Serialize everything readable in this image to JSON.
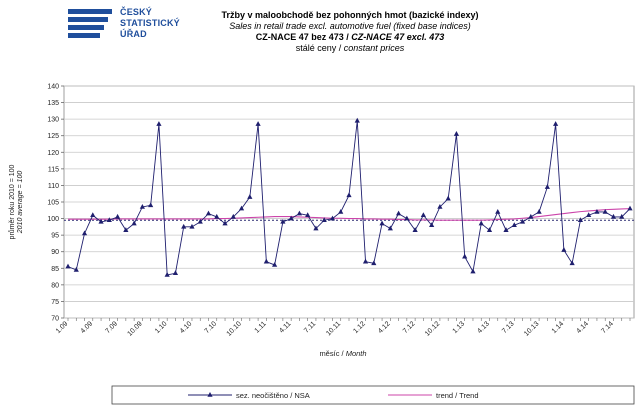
{
  "logo": {
    "line1": "ČESKÝ",
    "line2": "STATISTICKÝ",
    "line3": "ÚŘAD"
  },
  "header": {
    "title_cz": "Tržby v maloobchodě  bez pohonných  hmot (bazické indexy)",
    "title_en": "Sales in retail trade excl. automotive fuel (fixed base indices)",
    "code_cz": "CZ-NACE 47 bez 473",
    "code_en": "CZ-NACE 47 excl. 473",
    "prices_cz": "stálé ceny",
    "prices_en": "constant  prices"
  },
  "chart_data": {
    "type": "line",
    "ylabel_cz": "průměr roku 2010 = 100",
    "ylabel_en": "2010 average = 100",
    "xlabel_cz": "měsíc",
    "xlabel_en": "Month",
    "ylim": [
      70,
      140
    ],
    "yticks": [
      70,
      75,
      80,
      85,
      90,
      95,
      100,
      105,
      110,
      115,
      120,
      125,
      130,
      135,
      140
    ],
    "grid": true,
    "x": [
      "1.09",
      "2.09",
      "3.09",
      "4.09",
      "5.09",
      "6.09",
      "7.09",
      "8.09",
      "9.09",
      "10.09",
      "11.09",
      "12.09",
      "1.10",
      "2.10",
      "3.10",
      "4.10",
      "5.10",
      "6.10",
      "7.10",
      "8.10",
      "9.10",
      "10.10",
      "11.10",
      "12.10",
      "1.11",
      "2.11",
      "3.11",
      "4.11",
      "5.11",
      "6.11",
      "7.11",
      "8.11",
      "9.11",
      "10.11",
      "11.11",
      "12.11",
      "1.12",
      "2.12",
      "3.12",
      "4.12",
      "5.12",
      "6.12",
      "7.12",
      "8.12",
      "9.12",
      "10.12",
      "11.12",
      "12.12",
      "1.13",
      "2.13",
      "3.13",
      "4.13",
      "5.13",
      "6.13",
      "7.13",
      "8.13",
      "9.13",
      "10.13",
      "11.13",
      "12.13",
      "1.14",
      "2.14",
      "3.14",
      "4.14",
      "5.14",
      "6.14",
      "7.14",
      "8.14",
      "9.14"
    ],
    "xtick_labels": [
      "1.09",
      "4.09",
      "7.09",
      "10.09",
      "1.10",
      "4.10",
      "7.10",
      "10.10",
      "1.11",
      "4.11",
      "7.11",
      "10.11",
      "1.12",
      "4.12",
      "7.12",
      "10.12",
      "1.13",
      "4.13",
      "7.13",
      "10.13",
      "1.14",
      "4.14",
      "7.14"
    ],
    "series": [
      {
        "name": "sez. neočištěno / NSA",
        "color": "#1f1f6e",
        "marker": "triangle",
        "values": [
          85.5,
          84.5,
          95.5,
          101.0,
          99.0,
          99.5,
          100.5,
          96.5,
          98.5,
          103.5,
          104.0,
          128.5,
          83.0,
          83.5,
          97.5,
          97.5,
          99.0,
          101.5,
          100.5,
          98.5,
          100.5,
          103.0,
          106.5,
          128.5,
          87.0,
          86.0,
          99.0,
          100.0,
          101.5,
          101.0,
          97.0,
          99.5,
          100.0,
          102.0,
          107.0,
          129.5,
          87.0,
          86.5,
          98.5,
          97.0,
          101.5,
          100.0,
          96.5,
          101.0,
          98.0,
          103.5,
          106.0,
          125.5,
          88.5,
          84.0,
          98.5,
          96.5,
          102.0,
          96.5,
          98.0,
          99.0,
          100.5,
          102.0,
          109.5,
          128.5,
          90.5,
          86.5,
          99.5,
          101.0,
          102.0,
          102.0,
          100.5,
          100.5,
          103.0
        ]
      },
      {
        "name": "trend / Trend",
        "color": "#cc44aa",
        "marker": "none",
        "values": [
          99.8,
          99.8,
          99.8,
          99.8,
          99.8,
          99.8,
          99.9,
          99.9,
          99.9,
          99.9,
          99.9,
          99.9,
          99.9,
          99.9,
          99.9,
          99.9,
          99.9,
          99.9,
          100.0,
          100.0,
          100.1,
          100.2,
          100.3,
          100.4,
          100.5,
          100.6,
          100.6,
          100.6,
          100.5,
          100.4,
          100.3,
          100.2,
          100.1,
          100.1,
          100.0,
          100.0,
          99.9,
          99.9,
          99.8,
          99.8,
          99.7,
          99.7,
          99.6,
          99.6,
          99.6,
          99.5,
          99.5,
          99.5,
          99.5,
          99.5,
          99.5,
          99.6,
          99.7,
          99.8,
          99.9,
          100.1,
          100.3,
          100.6,
          100.9,
          101.2,
          101.5,
          101.8,
          102.1,
          102.3,
          102.5,
          102.7,
          102.8,
          102.9,
          103.0
        ]
      },
      {
        "name": "baseline",
        "color": "#2a2a70",
        "marker": "none",
        "dashed": true,
        "values_constant": 99.5
      }
    ],
    "legend": [
      "sez. neočištěno / NSA",
      "trend / Trend"
    ],
    "legend_position": "bottom"
  }
}
